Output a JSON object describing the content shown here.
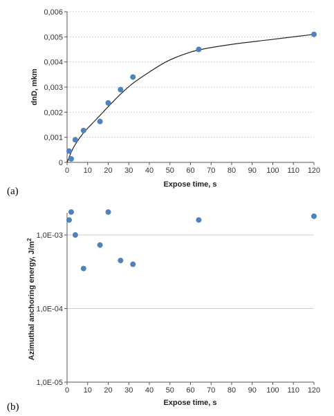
{
  "colors": {
    "marker": "#4f81bd",
    "grid": "#d0d0d0",
    "axis": "#555555",
    "curve": "#222222"
  },
  "chart_data": [
    {
      "panel_label": "(a)",
      "type": "scatter",
      "xlabel": "Expose time, s",
      "ylabel": "dnD, mkm",
      "xlim": [
        0,
        120
      ],
      "ylim": [
        0,
        0.006
      ],
      "x_ticks": [
        0,
        10,
        20,
        30,
        40,
        50,
        60,
        70,
        80,
        90,
        100,
        110,
        120
      ],
      "x_tick_labels": [
        "0",
        "10",
        "20",
        "30",
        "40",
        "50",
        "60",
        "70",
        "80",
        "90",
        "100",
        "110",
        "120"
      ],
      "y_ticks": [
        0,
        0.001,
        0.002,
        0.003,
        0.004,
        0.005,
        0.006
      ],
      "y_tick_labels": [
        "0",
        "0,001",
        "0,002",
        "0,003",
        "0,004",
        "0,005",
        "0,006"
      ],
      "grid": "horizontal dotted",
      "points": {
        "x": [
          1,
          2,
          4,
          8,
          16,
          20,
          26,
          32,
          64,
          120
        ],
        "y": [
          0.00045,
          0.00014,
          0.0009,
          0.00127,
          0.00163,
          0.00237,
          0.0029,
          0.0034,
          0.0045,
          0.0051
        ]
      },
      "trend_curve": {
        "x": [
          0,
          2,
          4,
          8,
          12,
          16,
          20,
          26,
          32,
          40,
          48,
          56,
          64,
          80,
          100,
          120
        ],
        "y": [
          0,
          0.0004,
          0.00072,
          0.00118,
          0.00153,
          0.00187,
          0.00222,
          0.00272,
          0.00315,
          0.0036,
          0.004,
          0.00428,
          0.00448,
          0.0047,
          0.0049,
          0.0051
        ]
      }
    },
    {
      "panel_label": "(b)",
      "type": "scatter",
      "xlabel": "Expose time, s",
      "ylabel": "Azimuthal anchoring energy, J/m",
      "ylabel_superscript": "2",
      "xlim": [
        0,
        120
      ],
      "ylim": [
        1e-05,
        0.002
      ],
      "y_scale": "log",
      "x_ticks": [
        0,
        10,
        20,
        30,
        40,
        50,
        60,
        70,
        80,
        90,
        100,
        110,
        120
      ],
      "x_tick_labels": [
        "0",
        "10",
        "20",
        "30",
        "40",
        "50",
        "60",
        "70",
        "80",
        "90",
        "100",
        "110",
        "120"
      ],
      "y_ticks": [
        1e-05,
        0.0001,
        0.001
      ],
      "y_tick_labels": [
        "1,0E-05",
        "1,0E-04",
        "1,0E-03"
      ],
      "grid": "horizontal",
      "points": {
        "x": [
          1,
          2,
          4,
          8,
          16,
          20,
          26,
          32,
          64,
          120
        ],
        "y": [
          0.0016,
          0.00205,
          0.001,
          0.00035,
          0.00073,
          0.00205,
          0.00045,
          0.0004,
          0.0016,
          0.0018
        ]
      }
    }
  ]
}
